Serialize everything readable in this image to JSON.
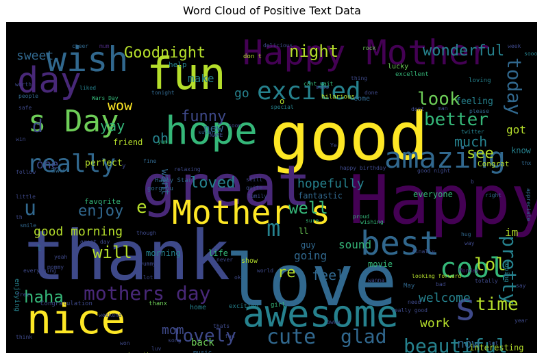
{
  "chart_data": {
    "type": "wordcloud",
    "title": "Word Cloud of Positive Text Data",
    "colormap": [
      "#440154",
      "#482878",
      "#3e4989",
      "#31688e",
      "#26828e",
      "#1f9e89",
      "#35b779",
      "#6ece58",
      "#b5de2b",
      "#fde725"
    ],
    "words": [
      {
        "text": "good",
        "weight": 95,
        "color": "#fde725"
      },
      {
        "text": "love",
        "weight": 100,
        "color": "#31688e"
      },
      {
        "text": "thank",
        "weight": 92,
        "color": "#3e4989"
      },
      {
        "text": "Happy",
        "weight": 90,
        "color": "#440154"
      },
      {
        "text": "great",
        "weight": 80,
        "color": "#482878"
      },
      {
        "text": "Happy Mother",
        "weight": 70,
        "color": "#440154"
      },
      {
        "text": "hope",
        "weight": 62,
        "color": "#35b779"
      },
      {
        "text": "fun",
        "weight": 64,
        "color": "#b5de2b"
      },
      {
        "text": "awesome",
        "weight": 60,
        "color": "#26828e"
      },
      {
        "text": "nice",
        "weight": 60,
        "color": "#fde725"
      },
      {
        "text": "wish",
        "weight": 50,
        "color": "#31688e"
      },
      {
        "text": "day",
        "weight": 52,
        "color": "#482878"
      },
      {
        "text": "s Day",
        "weight": 48,
        "color": "#6ece58"
      },
      {
        "text": "best",
        "weight": 50,
        "color": "#31688e"
      },
      {
        "text": "Mother s",
        "weight": 50,
        "color": "#fde725"
      },
      {
        "text": "amazing",
        "weight": 44,
        "color": "#31688e"
      },
      {
        "text": "excited",
        "weight": 40,
        "color": "#26828e"
      },
      {
        "text": "really",
        "weight": 40,
        "color": "#31688e"
      },
      {
        "text": "cool",
        "weight": 40,
        "color": "#35b779"
      },
      {
        "text": "s",
        "weight": 46,
        "color": "#3e4989"
      },
      {
        "text": "m",
        "weight": 40,
        "color": "#26828e"
      },
      {
        "text": "today",
        "weight": 28,
        "color": "#31688e"
      },
      {
        "text": "pretty",
        "weight": 30,
        "color": "#26828e"
      },
      {
        "text": "mothers day",
        "weight": 30,
        "color": "#482878"
      },
      {
        "text": "lovely",
        "weight": 28,
        "color": "#3e4989"
      },
      {
        "text": "cute",
        "weight": 30,
        "color": "#31688e"
      },
      {
        "text": "beautiful",
        "weight": 28,
        "color": "#26828e"
      },
      {
        "text": "glad",
        "weight": 30,
        "color": "#31688e"
      },
      {
        "text": "haha",
        "weight": 26,
        "color": "#35b779"
      },
      {
        "text": "time",
        "weight": 26,
        "color": "#b5de2b"
      },
      {
        "text": "lol",
        "weight": 26,
        "color": "#b5de2b"
      },
      {
        "text": "look",
        "weight": 24,
        "color": "#6ece58"
      },
      {
        "text": "better",
        "weight": 26,
        "color": "#35b779"
      },
      {
        "text": "night",
        "weight": 24,
        "color": "#b5de2b"
      },
      {
        "text": "Goodnight",
        "weight": 22,
        "color": "#b5de2b"
      },
      {
        "text": "wonderful",
        "weight": 22,
        "color": "#26828e"
      },
      {
        "text": "funny",
        "weight": 22,
        "color": "#3e4989"
      },
      {
        "text": "loved",
        "weight": 24,
        "color": "#26828e"
      },
      {
        "text": "well",
        "weight": 24,
        "color": "#35b779"
      },
      {
        "text": "enjoy",
        "weight": 24,
        "color": "#31688e"
      },
      {
        "text": "will",
        "weight": 24,
        "color": "#b5de2b"
      },
      {
        "text": "much",
        "weight": 20,
        "color": "#26828e"
      },
      {
        "text": "see",
        "weight": 22,
        "color": "#b5de2b"
      },
      {
        "text": "wow",
        "weight": 20,
        "color": "#fde725"
      },
      {
        "text": "yay",
        "weight": 20,
        "color": "#35b779"
      },
      {
        "text": "oh",
        "weight": 20,
        "color": "#26828e"
      },
      {
        "text": "u",
        "weight": 28,
        "color": "#31688e"
      },
      {
        "text": "e",
        "weight": 26,
        "color": "#b5de2b"
      },
      {
        "text": "d",
        "weight": 26,
        "color": "#3e4989"
      },
      {
        "text": "sweet",
        "weight": 18,
        "color": "#31688e"
      },
      {
        "text": "go",
        "weight": 18,
        "color": "#26828e"
      },
      {
        "text": "make",
        "weight": 16,
        "color": "#26828e"
      },
      {
        "text": "want",
        "weight": 16,
        "color": "#31688e"
      },
      {
        "text": "new",
        "weight": 16,
        "color": "#31688e"
      },
      {
        "text": "one",
        "weight": 18,
        "color": "#3e4989"
      },
      {
        "text": "good morning",
        "weight": 18,
        "color": "#b5de2b"
      },
      {
        "text": "hopefully",
        "weight": 18,
        "color": "#26828e"
      },
      {
        "text": "feel",
        "weight": 20,
        "color": "#31688e"
      },
      {
        "text": "re",
        "weight": 22,
        "color": "#b5de2b"
      },
      {
        "text": "work",
        "weight": 18,
        "color": "#b5de2b"
      },
      {
        "text": "welcome",
        "weight": 18,
        "color": "#26828e"
      },
      {
        "text": "now",
        "weight": 18,
        "color": "#31688e"
      },
      {
        "text": "mom",
        "weight": 18,
        "color": "#3e4989"
      },
      {
        "text": "sound",
        "weight": 16,
        "color": "#35b779"
      },
      {
        "text": "going",
        "weight": 16,
        "color": "#31688e"
      },
      {
        "text": "got",
        "weight": 16,
        "color": "#b5de2b"
      },
      {
        "text": "im",
        "weight": 16,
        "color": "#b5de2b"
      },
      {
        "text": "good luck",
        "weight": 16,
        "color": "#31688e"
      },
      {
        "text": "back",
        "weight": 14,
        "color": "#6ece58"
      },
      {
        "text": "fantastic",
        "weight": 12,
        "color": "#31688e"
      },
      {
        "text": "everyone",
        "weight": 12,
        "color": "#35b779"
      },
      {
        "text": "perfect",
        "weight": 13,
        "color": "#b5de2b"
      },
      {
        "text": "feeling",
        "weight": 13,
        "color": "#26828e"
      },
      {
        "text": "know",
        "weight": 12,
        "color": "#26828e"
      },
      {
        "text": "Congrat",
        "weight": 11,
        "color": "#b5de2b"
      },
      {
        "text": "interesting",
        "weight": 12,
        "color": "#b5de2b"
      },
      {
        "text": "friend",
        "weight": 12,
        "color": "#b5de2b"
      },
      {
        "text": "morning",
        "weight": 12,
        "color": "#26828e"
      },
      {
        "text": "life",
        "weight": 12,
        "color": "#35b779"
      },
      {
        "text": "movie",
        "weight": 12,
        "color": "#35b779"
      },
      {
        "text": "guy",
        "weight": 12,
        "color": "#31688e"
      },
      {
        "text": "help",
        "weight": 11,
        "color": "#26828e"
      },
      {
        "text": "favorite",
        "weight": 11,
        "color": "#35b779"
      },
      {
        "text": "aww",
        "weight": 11,
        "color": "#31688e"
      },
      {
        "text": "ll",
        "weight": 12,
        "color": "#6ece58"
      },
      {
        "text": "show",
        "weight": 10,
        "color": "#b5de2b"
      },
      {
        "text": "home",
        "weight": 10,
        "color": "#26828e"
      },
      {
        "text": "exciting",
        "weight": 9,
        "color": "#26828e"
      },
      {
        "text": "music",
        "weight": 9,
        "color": "#31688e"
      },
      {
        "text": "enjoying",
        "weight": 10,
        "color": "#26828e"
      },
      {
        "text": "Happy Star",
        "weight": 9,
        "color": "#31688e"
      },
      {
        "text": "gorgeou",
        "weight": 9,
        "color": "#31688e"
      },
      {
        "text": "lucky",
        "weight": 10,
        "color": "#6ece58"
      },
      {
        "text": "come",
        "weight": 10,
        "color": "#31688e"
      },
      {
        "text": "excellent",
        "weight": 9,
        "color": "#35b779"
      },
      {
        "text": "loving",
        "weight": 9,
        "color": "#26828e"
      },
      {
        "text": "Congratulation",
        "weight": 9,
        "color": "#3e4989"
      },
      {
        "text": "thanx",
        "weight": 9,
        "color": "#6ece58"
      },
      {
        "text": "girl",
        "weight": 9,
        "color": "#35b779"
      },
      {
        "text": "hilarious",
        "weight": 9,
        "color": "#b5de2b"
      },
      {
        "text": "special",
        "weight": 8,
        "color": "#26828e"
      },
      {
        "text": "cant wait",
        "weight": 8,
        "color": "#35b779"
      },
      {
        "text": "looking forward",
        "weight": 8,
        "color": "#b5de2b"
      },
      {
        "text": "May",
        "weight": 9,
        "color": "#31688e"
      },
      {
        "text": "hoping",
        "weight": 9,
        "color": "#26828e"
      },
      {
        "text": "appreciate",
        "weight": 8,
        "color": "#31688e"
      },
      {
        "text": "happy birthday",
        "weight": 8,
        "color": "#3e4989"
      },
      {
        "text": "good night",
        "weight": 8,
        "color": "#3e4989"
      },
      {
        "text": "wishing",
        "weight": 8,
        "color": "#35b779"
      },
      {
        "text": "thx",
        "weight": 8,
        "color": "#31688e"
      },
      {
        "text": "twitter",
        "weight": 8,
        "color": "#26828e"
      },
      {
        "text": "yum",
        "weight": 8,
        "color": "#35b779"
      },
      {
        "text": "Star Wars",
        "weight": 8,
        "color": "#31688e"
      },
      {
        "text": "Wars Day",
        "weight": 8,
        "color": "#35b779"
      },
      {
        "text": "rock",
        "weight": 8,
        "color": "#6ece58"
      },
      {
        "text": "proud",
        "weight": 8,
        "color": "#35b779"
      },
      {
        "text": "don t",
        "weight": 9,
        "color": "#b5de2b"
      },
      {
        "text": "t wait",
        "weight": 9,
        "color": "#b5de2b"
      }
    ]
  }
}
